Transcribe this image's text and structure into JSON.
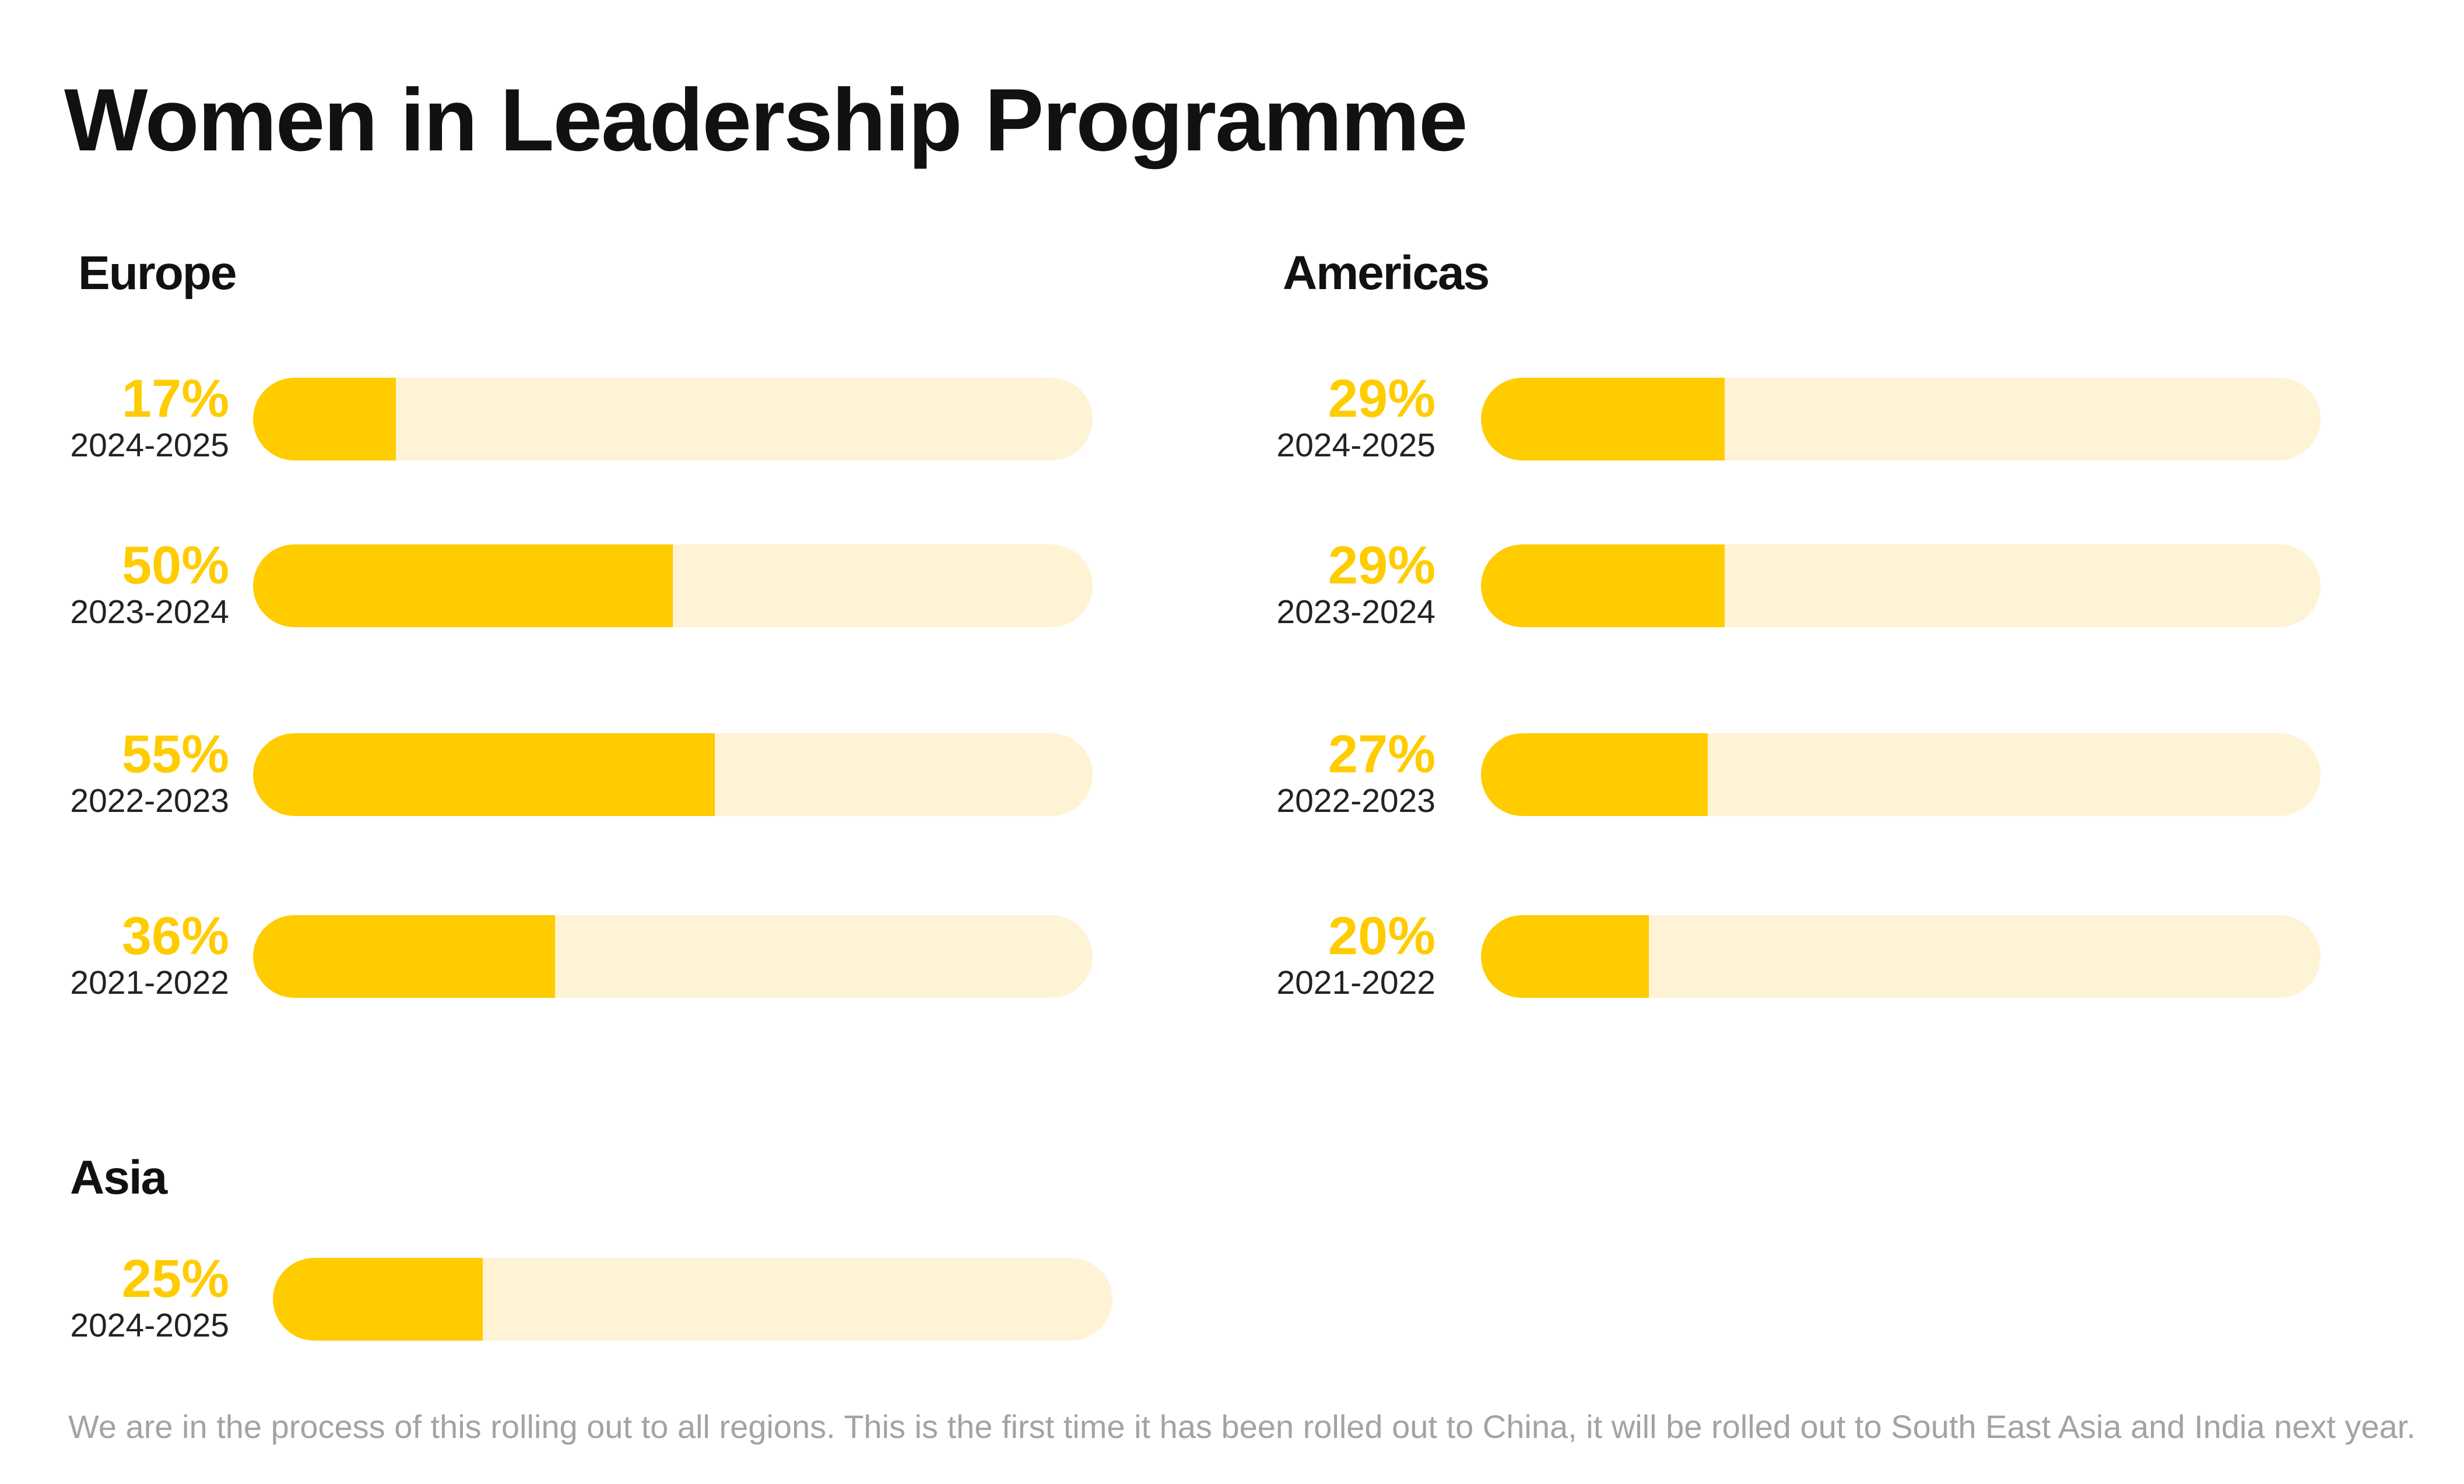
{
  "page": {
    "title": "Women in Leadership Programme",
    "footnote": "We are in the process of this rolling out to all regions. This is the first time it has been rolled out to China, it will be rolled out to South East Asia and India next year."
  },
  "colors": {
    "fill": "#ffcc00",
    "track": "#fff3d6",
    "label": "#ffcc00",
    "text": "#111111",
    "footnote": "#a3a3a3"
  },
  "chart_data": [
    {
      "type": "bar",
      "orientation": "horizontal",
      "region": "Europe",
      "categories": [
        "2024-2025",
        "2023-2024",
        "2022-2023",
        "2021-2022"
      ],
      "values": [
        17,
        50,
        55,
        36
      ],
      "value_labels": [
        "17%",
        "50%",
        "55%",
        "36%"
      ],
      "xlim": [
        0,
        100
      ],
      "grid": false
    },
    {
      "type": "bar",
      "orientation": "horizontal",
      "region": "Americas",
      "categories": [
        "2024-2025",
        "2023-2024",
        "2022-2023",
        "2021-2022"
      ],
      "values": [
        29,
        29,
        27,
        20
      ],
      "value_labels": [
        "29%",
        "29%",
        "27%",
        "20%"
      ],
      "xlim": [
        0,
        100
      ],
      "grid": false
    },
    {
      "type": "bar",
      "orientation": "horizontal",
      "region": "Asia",
      "categories": [
        "2024-2025"
      ],
      "values": [
        25
      ],
      "value_labels": [
        "25%"
      ],
      "xlim": [
        0,
        100
      ],
      "grid": false
    }
  ]
}
